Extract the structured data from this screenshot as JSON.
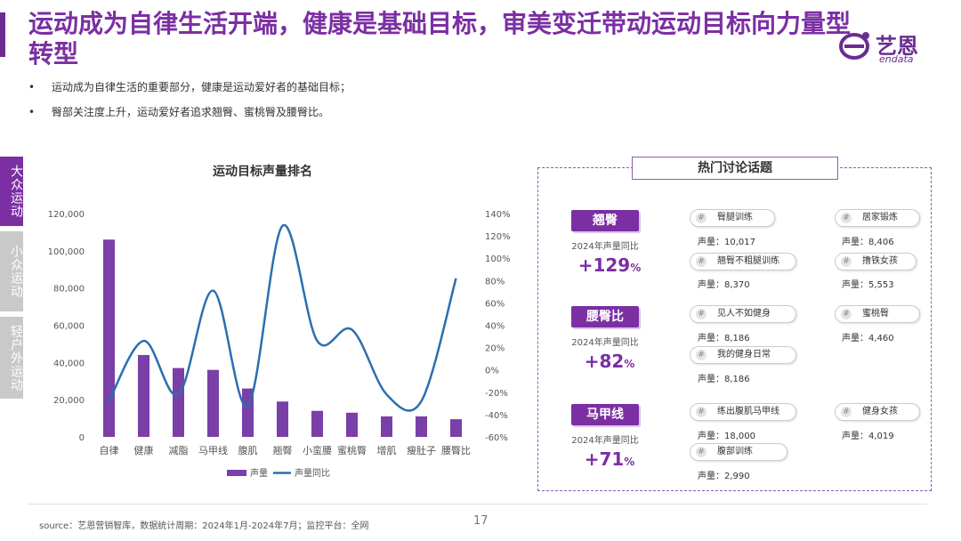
{
  "title": "运动成为自律生活开端，健康是基础目标，审美变迁带动运动目标向力量型转型",
  "logo": {
    "cn": "艺恩",
    "en": "endata"
  },
  "bullets": [
    "运动成为自律生活的重要部分，健康是运动爱好者的基础目标；",
    "臀部关注度上升，运动爱好者追求翘臀、蜜桃臀及腰臀比。"
  ],
  "side_tabs": [
    {
      "label": "大众运动",
      "active": true
    },
    {
      "label": "小众运动",
      "active": false
    },
    {
      "label": "轻户外运动",
      "active": false
    }
  ],
  "chart_data": {
    "type": "bar",
    "title": "运动目标声量排名",
    "categories": [
      "自律",
      "健康",
      "减脂",
      "马甲线",
      "腹肌",
      "翘臀",
      "小蛮腰",
      "蜜桃臀",
      "增肌",
      "瘦肚子",
      "腰臀比"
    ],
    "series": [
      {
        "name": "声量",
        "type": "bar",
        "axis": "left",
        "color": "#7b3fa8",
        "values": [
          106000,
          44000,
          37000,
          36000,
          26000,
          19000,
          14000,
          13000,
          11000,
          11000,
          9500
        ]
      },
      {
        "name": "声量同比",
        "type": "line",
        "axis": "right",
        "color": "#2a6fb0",
        "values": [
          -28,
          26,
          -22,
          71,
          -32,
          129,
          26,
          36,
          -22,
          -28,
          82
        ]
      }
    ],
    "y_left": {
      "ticks": [
        "0",
        "20,000",
        "40,000",
        "60,000",
        "80,000",
        "100,000",
        "120,000"
      ],
      "ylim": [
        0,
        120000
      ]
    },
    "y_right": {
      "ticks": [
        "-60%",
        "-40%",
        "-20%",
        "0%",
        "20%",
        "40%",
        "60%",
        "80%",
        "100%",
        "120%",
        "140%"
      ],
      "ylim": [
        -60,
        140
      ]
    },
    "legend_placement": "bottom"
  },
  "topics": {
    "header": "热门讨论话题",
    "yoy_label": "2024年声量同比",
    "vol_label": "声量：",
    "hash_icon": "#",
    "groups": [
      {
        "label": "翘臀",
        "pct": "+129",
        "unit": "%",
        "items": [
          {
            "name": "臀腿训练",
            "volume": "10,017"
          },
          {
            "name": "居家锻炼",
            "volume": "8,406"
          },
          {
            "name": "翘臀不粗腿训练",
            "volume": "8,370"
          },
          {
            "name": "撸铁女孩",
            "volume": "5,553"
          }
        ]
      },
      {
        "label": "腰臀比",
        "pct": "+82",
        "unit": "%",
        "items": [
          {
            "name": "见人不如健身",
            "volume": "8,186"
          },
          {
            "name": "蜜桃臀",
            "volume": "4,460"
          },
          {
            "name": "我的健身日常",
            "volume": "8,186"
          }
        ]
      },
      {
        "label": "马甲线",
        "pct": "+71",
        "unit": "%",
        "items": [
          {
            "name": "练出腹肌马甲线",
            "volume": "18,000"
          },
          {
            "name": "健身女孩",
            "volume": "4,019"
          },
          {
            "name": "腹部训练",
            "volume": "2,990"
          }
        ]
      }
    ]
  },
  "footer": {
    "source": "source：艺恩营销智库，数据统计周期：2024年1月-2024年7月；监控平台：全网",
    "page": "17"
  }
}
